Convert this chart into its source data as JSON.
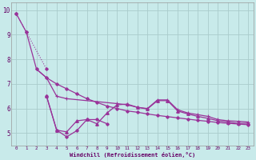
{
  "background_color": "#c8eaea",
  "grid_color": "#aacccc",
  "line_color": "#993399",
  "xlabel": "Windchill (Refroidissement éolien,°C)",
  "xlabel_color": "#660066",
  "tick_color": "#660066",
  "xlim": [
    -0.5,
    23.5
  ],
  "ylim": [
    4.5,
    10.3
  ],
  "yticks": [
    5,
    6,
    7,
    8,
    9,
    10
  ],
  "xticks": [
    0,
    1,
    2,
    3,
    4,
    5,
    6,
    7,
    8,
    9,
    10,
    11,
    12,
    13,
    14,
    15,
    16,
    17,
    18,
    19,
    20,
    21,
    22,
    23
  ],
  "line_a_x": [
    0,
    1,
    2,
    3,
    4,
    5,
    6,
    7,
    8,
    9,
    10,
    11,
    12,
    13,
    14,
    15,
    16,
    17,
    18,
    19,
    20,
    21,
    22,
    23
  ],
  "line_a_y": [
    9.85,
    9.1,
    7.6,
    7.25,
    7.0,
    6.8,
    6.6,
    6.4,
    6.25,
    6.1,
    6.0,
    5.9,
    5.85,
    5.78,
    5.72,
    5.67,
    5.62,
    5.57,
    5.52,
    5.48,
    5.43,
    5.4,
    5.37,
    5.34
  ],
  "line_b_x": [
    2,
    3,
    4,
    5,
    10,
    11,
    12,
    13,
    14,
    15,
    16,
    17,
    18,
    19,
    20,
    21,
    22,
    23
  ],
  "line_b_y": [
    7.6,
    7.25,
    6.5,
    6.4,
    6.2,
    6.15,
    6.05,
    6.0,
    6.35,
    6.35,
    5.95,
    5.82,
    5.75,
    5.68,
    5.55,
    5.5,
    5.48,
    5.45
  ],
  "line_c_x": [
    3,
    4,
    5,
    6,
    7,
    8,
    9,
    10,
    11,
    12,
    13,
    14,
    15,
    16,
    17,
    18,
    19,
    20,
    21,
    22,
    23
  ],
  "line_c_y": [
    6.5,
    5.12,
    5.05,
    5.5,
    5.55,
    5.38,
    5.82,
    6.15,
    6.18,
    6.05,
    5.98,
    6.32,
    6.32,
    5.9,
    5.78,
    5.68,
    5.6,
    5.5,
    5.45,
    5.4,
    5.4
  ],
  "line_d_x": [
    3,
    4,
    5,
    6,
    7,
    8,
    9
  ],
  "line_d_y": [
    6.5,
    5.12,
    4.85,
    5.1,
    5.55,
    5.55,
    5.38
  ]
}
